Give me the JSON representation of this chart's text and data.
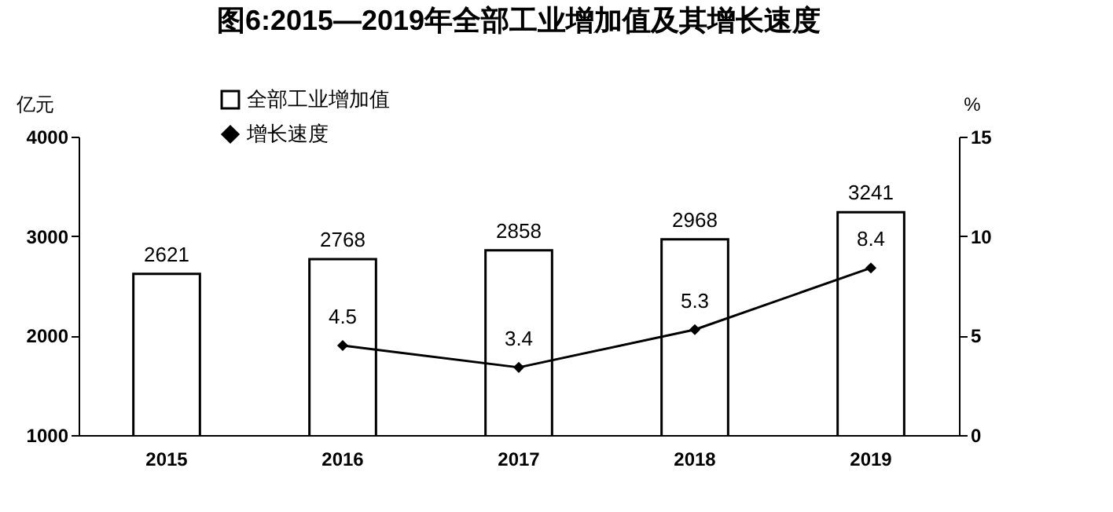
{
  "chart_data": {
    "type": "bar",
    "title": "图6:2015—2019年全部工业增加值及其增长速度",
    "ylabel": "亿元",
    "y2label": "%",
    "categories": [
      "2015",
      "2016",
      "2017",
      "2018",
      "2019"
    ],
    "series": [
      {
        "name": "全部工业增加值",
        "color": "#ffffff",
        "values": [
          2621,
          2768,
          2858,
          2968,
          3241
        ]
      },
      {
        "name": "增长速度",
        "type": "line",
        "axis": "y2",
        "color": "#000000",
        "values": [
          null,
          4.5,
          3.4,
          5.3,
          8.4
        ]
      }
    ],
    "ylim": [
      1000,
      4000
    ],
    "yticks": [
      1000,
      2000,
      3000,
      4000
    ],
    "y2lim": [
      0,
      15
    ],
    "y2ticks": [
      0,
      5,
      10,
      15
    ],
    "data_labels": true,
    "legend": "top left",
    "marker": "diamond",
    "grid": false
  }
}
